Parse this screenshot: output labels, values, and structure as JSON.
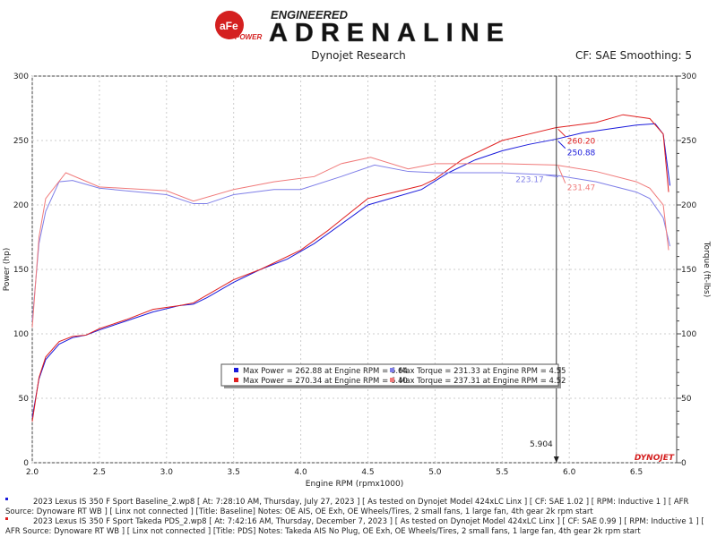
{
  "header": {
    "logo_small": "aFe POWER",
    "logo_top": "ENGINEERED",
    "logo_main": "ADRENALINE",
    "subtitle": "Dynojet Research",
    "cf_info": "CF: SAE Smoothing: 5"
  },
  "brand_mark": "DYNOJET",
  "colors": {
    "blue_power": "#1a1adb",
    "red_power": "#e02020",
    "blue_torque": "#7f7fe8",
    "red_torque": "#f07a7a"
  },
  "chart_data": {
    "type": "line",
    "xlabel": "Engine RPM (rpmx1000)",
    "ylabel": "Power (hp)",
    "y2label": "Torque (ft-lbs)",
    "xlim": [
      2.0,
      6.8
    ],
    "ylim": [
      0,
      300
    ],
    "y2lim": [
      0,
      300
    ],
    "xticks": [
      "2.0",
      "2.5",
      "3.0",
      "3.5",
      "4.0",
      "4.5",
      "5.0",
      "5.5",
      "6.0",
      "6.5"
    ],
    "yticks": [
      "0",
      "50",
      "100",
      "150",
      "200",
      "250",
      "300"
    ],
    "grid": true,
    "cursor": {
      "x": 5.904,
      "label": "5.904"
    },
    "cursor_labels": [
      {
        "value": "260.20",
        "series": 1
      },
      {
        "value": "250.88",
        "series": 0
      },
      {
        "value": "231.47",
        "series": 3
      },
      {
        "value": "223.17",
        "series": 2
      }
    ],
    "series": [
      {
        "color": "#1a1adb",
        "x": [
          2.0,
          2.05,
          2.1,
          2.2,
          2.3,
          2.4,
          2.5,
          2.7,
          2.9,
          3.1,
          3.2,
          3.3,
          3.5,
          3.7,
          3.9,
          4.1,
          4.3,
          4.5,
          4.7,
          4.9,
          5.1,
          5.3,
          5.5,
          5.7,
          5.9,
          6.1,
          6.3,
          6.5,
          6.64,
          6.7,
          6.75
        ],
        "y": [
          35,
          65,
          80,
          92,
          97,
          99,
          103,
          110,
          117,
          122,
          123,
          128,
          140,
          150,
          158,
          170,
          185,
          200,
          206,
          212,
          225,
          235,
          242,
          247,
          251,
          256,
          259,
          262,
          263,
          255,
          215
        ]
      },
      {
        "color": "#e02020",
        "x": [
          2.0,
          2.05,
          2.1,
          2.2,
          2.3,
          2.4,
          2.5,
          2.7,
          2.9,
          3.1,
          3.2,
          3.3,
          3.5,
          3.7,
          4.0,
          4.2,
          4.5,
          4.7,
          4.9,
          5.0,
          5.2,
          5.5,
          5.7,
          5.9,
          6.2,
          6.4,
          6.6,
          6.7,
          6.74
        ],
        "y": [
          32,
          66,
          82,
          94,
          98,
          99,
          104,
          111,
          119,
          122,
          124,
          130,
          142,
          150,
          165,
          180,
          205,
          210,
          215,
          220,
          235,
          250,
          255,
          260,
          264,
          270,
          267,
          255,
          210
        ]
      },
      {
        "color": "#7f7fe8",
        "x": [
          2.0,
          2.05,
          2.1,
          2.2,
          2.3,
          2.5,
          3.0,
          3.2,
          3.3,
          3.5,
          3.8,
          4.0,
          4.3,
          4.55,
          4.8,
          5.0,
          5.5,
          5.9,
          6.2,
          6.5,
          6.6,
          6.7,
          6.75
        ],
        "y": [
          110,
          170,
          195,
          218,
          219,
          213,
          208,
          201,
          201,
          208,
          212,
          212,
          222,
          231,
          226,
          225,
          225,
          223,
          218,
          210,
          205,
          190,
          168
        ]
      },
      {
        "color": "#f07a7a",
        "x": [
          2.0,
          2.05,
          2.1,
          2.25,
          2.5,
          3.0,
          3.2,
          3.5,
          3.8,
          4.1,
          4.3,
          4.52,
          4.8,
          5.0,
          5.5,
          5.9,
          6.2,
          6.5,
          6.6,
          6.7,
          6.74
        ],
        "y": [
          105,
          175,
          205,
          225,
          214,
          211,
          203,
          212,
          218,
          222,
          232,
          237,
          228,
          232,
          232,
          231,
          226,
          218,
          213,
          200,
          165
        ]
      }
    ],
    "legend": [
      {
        "color": "#1a1adb",
        "text": "Max Power = 262.88 at Engine RPM = 6.64"
      },
      {
        "color": "#7f7fe8",
        "text": "Max Torque = 231.33 at Engine RPM = 4.55"
      },
      {
        "color": "#e02020",
        "text": "Max Power = 270.34 at Engine RPM = 6.40"
      },
      {
        "color": "#f07a7a",
        "text": "Max Torque = 237.31 at Engine RPM = 4.52"
      }
    ],
    "legend_placement": "bottom-center"
  },
  "footer": [
    "2023 Lexus IS 350 F Sport Baseline_2.wp8 [ At: 7:28:10 AM, Thursday, July 27, 2023 ] [ As tested on Dynojet Model 424xLC Linx ] [ CF: SAE 1.02 ] [ RPM: Inductive 1 ] [ AFR Source: Dynoware RT WB ] [ Linx not connected ] [Title: Baseline]  Notes: OE AIS, OE Exh, OE Wheels/Tires, 2 small fans, 1 large fan, 4th gear 2k rpm start",
    "2023 Lexus IS 350 F Sport Takeda PDS_2.wp8 [ At: 7:42:16 AM, Thursday, December 7, 2023 ] [ As tested on Dynojet Model 424xLC Linx ] [ CF: SAE 0.99 ] [ RPM: Inductive 1 ] [ AFR Source: Dynoware RT WB ] [ Linx not connected ] [Title: PDS]  Notes: Takeda AIS No Plug, OE Exh, OE Wheels/Tires, 2 small fans, 1 large fan, 4th gear 2k rpm start"
  ]
}
